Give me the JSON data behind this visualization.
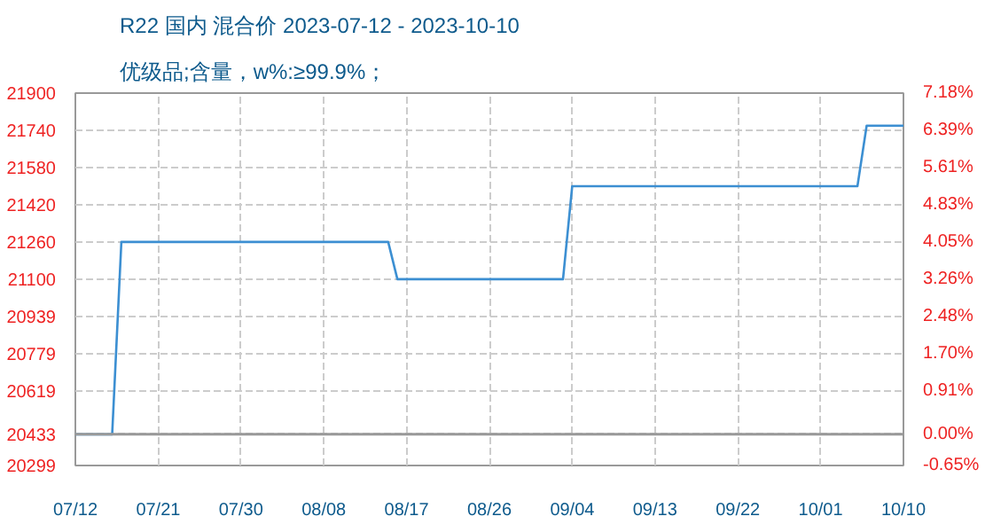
{
  "chart_data": {
    "type": "line",
    "title": "R22 国内 混合价 2023-07-12 - 2023-10-10",
    "subtitle": "优级品;含量，w%:≥99.9%；",
    "x": [
      "2023-07-12",
      "2023-07-16",
      "2023-07-17",
      "2023-08-15",
      "2023-08-16",
      "2023-09-03",
      "2023-09-04",
      "2023-10-05",
      "2023-10-06",
      "2023-10-10"
    ],
    "series": [
      {
        "color": "#3c8fd2",
        "values": [
          20433,
          20433,
          21260,
          21260,
          21100,
          21100,
          21500,
          21500,
          21760,
          21760
        ]
      }
    ],
    "xlim": [
      "2023-07-12",
      "2023-10-10"
    ],
    "xticks": [
      {
        "value": "2023-07-12",
        "label": "07/12"
      },
      {
        "value": "2023-07-21",
        "label": "07/21"
      },
      {
        "value": "2023-07-30",
        "label": "07/30"
      },
      {
        "value": "2023-08-08",
        "label": "08/08"
      },
      {
        "value": "2023-08-17",
        "label": "08/17"
      },
      {
        "value": "2023-08-26",
        "label": "08/26"
      },
      {
        "value": "2023-09-04",
        "label": "09/04"
      },
      {
        "value": "2023-09-13",
        "label": "09/13"
      },
      {
        "value": "2023-09-22",
        "label": "09/22"
      },
      {
        "value": "2023-10-01",
        "label": "10/01"
      },
      {
        "value": "2023-10-10",
        "label": "10/10"
      }
    ],
    "ylim": [
      20299,
      21900
    ],
    "yticks": [
      20299,
      20433,
      20619,
      20779,
      20939,
      21100,
      21260,
      21420,
      21580,
      21740,
      21900
    ],
    "y2lim": [
      -0.65,
      7.18
    ],
    "y2ticks": [
      {
        "value": -0.65,
        "label": "-0.65%"
      },
      {
        "value": 0,
        "label": "0.00%"
      },
      {
        "value": 0.91,
        "label": "0.91%"
      },
      {
        "value": 1.7,
        "label": "1.70%"
      },
      {
        "value": 2.48,
        "label": "2.48%"
      },
      {
        "value": 3.26,
        "label": "3.26%"
      },
      {
        "value": 4.05,
        "label": "4.05%"
      },
      {
        "value": 4.83,
        "label": "4.83%"
      },
      {
        "value": 5.61,
        "label": "5.61%"
      },
      {
        "value": 6.39,
        "label": "6.39%"
      },
      {
        "value": 7.18,
        "label": "7.18%"
      }
    ],
    "ref_lines": [
      {
        "axis": "y",
        "value": 20433,
        "color": "#999999",
        "line_style": "solid"
      }
    ],
    "grid": true,
    "marker": "none",
    "line_style": "solid"
  }
}
